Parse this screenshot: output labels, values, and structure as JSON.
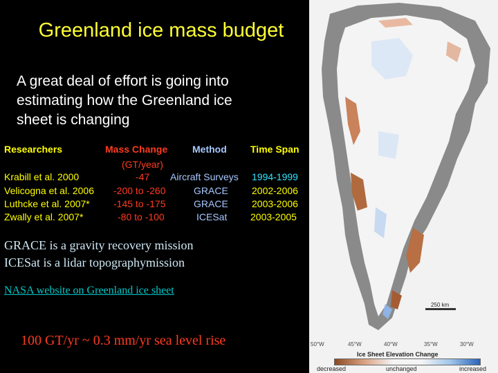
{
  "title": "Greenland ice mass budget",
  "intro": [
    "A great deal of effort is going into",
    "estimating how the Greenland ice",
    "sheet is changing"
  ],
  "table": {
    "headers": {
      "researchers": "Researchers",
      "mass": "Mass Change",
      "mass_unit": "(GT/year)",
      "method": "Method",
      "span": "Time Span"
    },
    "rows": [
      {
        "researchers": "Krabill et al. 2000",
        "mass": "-47",
        "method": "Aircraft Surveys",
        "span": "1994-1999"
      },
      {
        "researchers": "Velicogna et al. 2006",
        "mass": "-200 to -260",
        "method": "GRACE",
        "span": "2002-2006"
      },
      {
        "researchers": "Luthcke et al. 2007*",
        "mass": "-145 to -175",
        "method": "GRACE",
        "span": "2003-2006"
      },
      {
        "researchers": "Zwally et al. 2007*",
        "mass": "-80 to -100",
        "method": "ICESat",
        "span": "2003-2005"
      }
    ]
  },
  "notes": [
    "GRACE is a gravity recovery mission",
    "ICESat is a lidar topographymission"
  ],
  "link": "NASA website on Greenland ice sheet",
  "sea_level": "100 GT/yr ~ 0.3 mm/yr sea level rise",
  "map": {
    "legend_title": "Ice Sheet Elevation Change",
    "legend_labels": [
      "decreased",
      "unchanged",
      "increased"
    ],
    "scale": "250 km",
    "longitudes": [
      "50°W",
      "45°W",
      "40°W",
      "35°W",
      "30°W"
    ]
  }
}
